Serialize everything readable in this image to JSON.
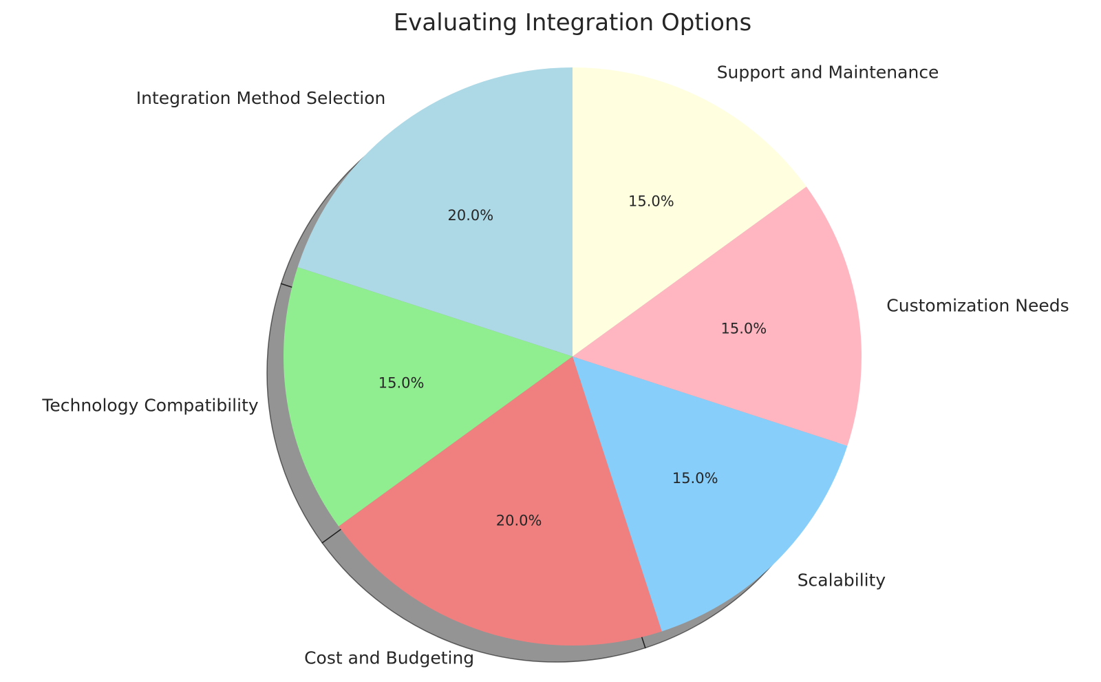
{
  "chart_data": {
    "type": "pie",
    "title": "Evaluating Integration Options",
    "start_angle_deg": 90,
    "direction": "counterclockwise",
    "shadow": true,
    "slices": [
      {
        "label": "Integration Method Selection",
        "value": 20.0,
        "pct_label": "20.0%",
        "color": "#ADD8E6"
      },
      {
        "label": "Technology Compatibility",
        "value": 15.0,
        "pct_label": "15.0%",
        "color": "#90EE90"
      },
      {
        "label": "Cost and Budgeting",
        "value": 20.0,
        "pct_label": "20.0%",
        "color": "#F08080"
      },
      {
        "label": "Scalability",
        "value": 15.0,
        "pct_label": "15.0%",
        "color": "#87CEFA"
      },
      {
        "label": "Customization Needs",
        "value": 15.0,
        "pct_label": "15.0%",
        "color": "#FFB6C1"
      },
      {
        "label": "Support and Maintenance",
        "value": 15.0,
        "pct_label": "15.0%",
        "color": "#FFFFE0"
      }
    ]
  }
}
